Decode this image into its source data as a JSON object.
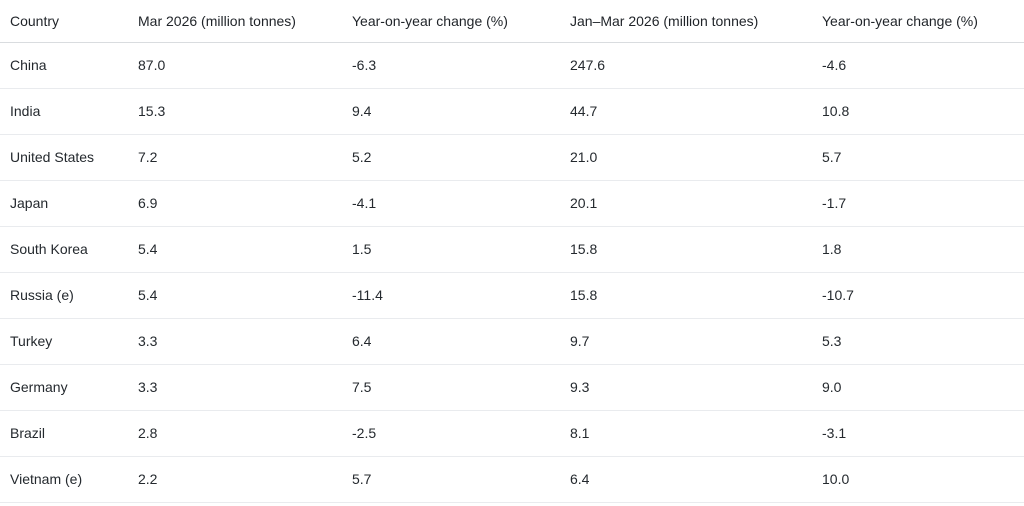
{
  "colors": {
    "background": "#ffffff",
    "text": "#1f2328",
    "header_border": "#d9dcdf",
    "row_border": "#e9ebee"
  },
  "table": {
    "headers": [
      "Country",
      "Mar 2026 (million tonnes)",
      "Year-on-year change (%)",
      "Jan–Mar 2026 (million tonnes)",
      "Year-on-year change (%)"
    ],
    "rows": [
      [
        "China",
        "87.0",
        "-6.3",
        "247.6",
        "-4.6"
      ],
      [
        "India",
        "15.3",
        "9.4",
        "44.7",
        "10.8"
      ],
      [
        "United States",
        "7.2",
        "5.2",
        "21.0",
        "5.7"
      ],
      [
        "Japan",
        "6.9",
        "-4.1",
        "20.1",
        "-1.7"
      ],
      [
        "South Korea",
        "5.4",
        "1.5",
        "15.8",
        "1.8"
      ],
      [
        "Russia (e)",
        "5.4",
        "-11.4",
        "15.8",
        "-10.7"
      ],
      [
        "Turkey",
        "3.3",
        "6.4",
        "9.7",
        "5.3"
      ],
      [
        "Germany",
        "3.3",
        "7.5",
        "9.3",
        "9.0"
      ],
      [
        "Brazil",
        "2.8",
        "-2.5",
        "8.1",
        "-3.1"
      ],
      [
        "Vietnam (e)",
        "2.2",
        "5.7",
        "6.4",
        "10.0"
      ]
    ]
  },
  "chart_data": {
    "type": "table",
    "columns": [
      "Country",
      "Mar 2026 (million tonnes)",
      "Year-on-year change (%)",
      "Jan–Mar 2026 (million tonnes)",
      "Year-on-year change (%)"
    ],
    "rows": [
      [
        "China",
        87.0,
        -6.3,
        247.6,
        -4.6
      ],
      [
        "India",
        15.3,
        9.4,
        44.7,
        10.8
      ],
      [
        "United States",
        7.2,
        5.2,
        21.0,
        5.7
      ],
      [
        "Japan",
        6.9,
        -4.1,
        20.1,
        -1.7
      ],
      [
        "South Korea",
        5.4,
        1.5,
        15.8,
        1.8
      ],
      [
        "Russia (e)",
        5.4,
        -11.4,
        15.8,
        -10.7
      ],
      [
        "Turkey",
        3.3,
        6.4,
        9.7,
        5.3
      ],
      [
        "Germany",
        3.3,
        7.5,
        9.3,
        9.0
      ],
      [
        "Brazil",
        2.8,
        -2.5,
        8.1,
        -3.1
      ],
      [
        "Vietnam (e)",
        2.2,
        5.7,
        6.4,
        10.0
      ]
    ]
  }
}
